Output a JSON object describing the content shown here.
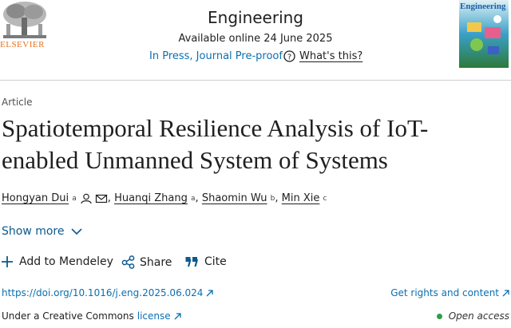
{
  "header": {
    "publisher": "ELSEVIER",
    "journal": "Engineering",
    "available": "Available online 24 June 2025",
    "status": "In Press, Journal Pre-proof",
    "help": "What's this?",
    "cover_title": "Engineering"
  },
  "article": {
    "type": "Article",
    "title": "Spatiotemporal Resilience Analysis of IoT-enabled Unmanned System of Systems",
    "separator": ",",
    "authors": [
      {
        "name": "Hongyan Dui",
        "affiliation": "a"
      },
      {
        "name": "Huanqi Zhang",
        "affiliation": "a"
      },
      {
        "name": "Shaomin Wu",
        "affiliation": "b"
      },
      {
        "name": "Min Xie",
        "affiliation": "c"
      }
    ],
    "show_more": "Show more"
  },
  "actions": [
    "Add to Mendeley",
    "Share",
    "Cite"
  ],
  "links": {
    "doi": "https://doi.org/10.1016/j.eng.2025.06.024",
    "rights": "Get rights and content",
    "license_prefix": "Under a Creative Commons",
    "license": "license",
    "open_access": "Open access"
  }
}
